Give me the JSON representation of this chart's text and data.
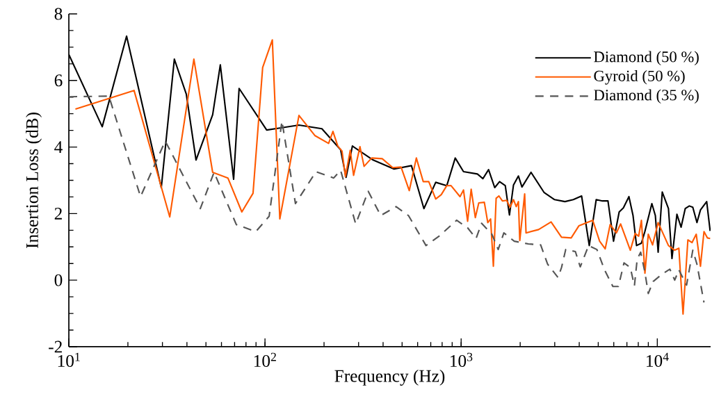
{
  "chart_data": {
    "type": "line",
    "xlabel": "Frequency (Hz)",
    "ylabel": "Insertion Loss (dB)",
    "log": "x",
    "legend": "top right",
    "marker": "none",
    "xlim": [
      10,
      18700
    ],
    "ylim": [
      -2,
      8
    ],
    "xticks": [
      {
        "value": 10,
        "label": "10$^{1}$"
      },
      {
        "value": 100,
        "label": "10$^{2}$"
      },
      {
        "value": 1000,
        "label": "10$^{3}$"
      },
      {
        "value": 10000,
        "label": "10$^{4}$"
      }
    ],
    "yticks": [
      -2,
      0,
      2,
      4,
      6,
      8
    ],
    "series": [
      {
        "name": "Diamond (50 %)",
        "color": "#000000",
        "line_style": "solid",
        "x": [
          10,
          14.8,
          19.7,
          29.6,
          34.5,
          39.7,
          44.5,
          54.1,
          59.2,
          69.2,
          73.8,
          102,
          119,
          149,
          195,
          243,
          259,
          279,
          356,
          455,
          558,
          646,
          742,
          845,
          933,
          1028,
          1210,
          1291,
          1380,
          1483,
          1570,
          1679,
          1763,
          1849,
          1959,
          2042,
          2271,
          2651,
          2995,
          3383,
          3732,
          4113,
          4500,
          4882,
          5252,
          5605,
          5984,
          6393,
          6714,
          7169,
          7524,
          7837,
          8297,
          8643,
          9383,
          9775,
          10100,
          10600,
          11400,
          11880,
          12590,
          13220,
          13880,
          14570,
          15170,
          15930,
          16600,
          17860,
          18600
        ],
        "values": [
          6.78,
          4.61,
          7.33,
          2.78,
          6.64,
          5.59,
          3.61,
          4.97,
          6.47,
          3.03,
          5.76,
          4.51,
          4.57,
          4.66,
          4.55,
          3.92,
          3.09,
          4.03,
          3.61,
          3.34,
          3.44,
          2.15,
          2.94,
          2.84,
          3.67,
          3.26,
          3.19,
          3.05,
          3.32,
          2.78,
          2.96,
          2.84,
          1.96,
          2.86,
          3.13,
          2.8,
          3.24,
          2.63,
          2.42,
          2.36,
          2.42,
          2.53,
          1.04,
          2.42,
          2.38,
          2.38,
          1.17,
          2.05,
          2.17,
          2.51,
          1.94,
          1.04,
          1.11,
          1.46,
          2.3,
          1.94,
          0.84,
          2.65,
          2.15,
          0.65,
          1.98,
          1.59,
          2.15,
          2.23,
          2.19,
          1.73,
          2.11,
          2.36,
          1.48
        ]
      },
      {
        "name": "Gyroid (50 %)",
        "color": "#ff5a00",
        "line_style": "solid",
        "x": [
          10.8,
          21.5,
          32.7,
          43.4,
          54.1,
          64.7,
          76.2,
          86.9,
          97.3,
          109,
          119,
          149,
          180,
          211,
          222,
          235,
          247,
          257,
          272,
          283,
          305,
          320,
          350,
          396,
          448,
          494,
          544,
          591,
          641,
          684,
          742,
          792,
          845,
          888,
          987,
          1028,
          1079,
          1125,
          1181,
          1230,
          1313,
          1367,
          1413,
          1460,
          1508,
          1558,
          1623,
          1706,
          1775,
          1849,
          1910,
          1959,
          1991,
          2108,
          2142,
          2482,
          2874,
          3249,
          3640,
          3981,
          4688,
          5082,
          5426,
          5748,
          6185,
          6500,
          7285,
          7715,
          8035,
          8300,
          8650,
          8995,
          9460,
          10100,
          11400,
          12270,
          12880,
          13530,
          14320,
          15040,
          15800,
          16600,
          17300,
          18000,
          18600
        ],
        "values": [
          5.14,
          5.7,
          1.9,
          6.64,
          3.24,
          3.07,
          2.05,
          2.61,
          6.39,
          7.22,
          1.84,
          4.95,
          4.34,
          4.11,
          4.47,
          4.03,
          3.88,
          3.11,
          3.9,
          3.15,
          4.01,
          3.42,
          3.67,
          3.65,
          3.38,
          3.4,
          2.69,
          3.67,
          2.96,
          2.96,
          2.44,
          2.57,
          2.84,
          2.84,
          2.51,
          2.71,
          1.77,
          2.73,
          1.88,
          2.32,
          2.34,
          1.73,
          1.84,
          0.42,
          2.46,
          2.53,
          2.38,
          2.4,
          2.19,
          2.42,
          2.21,
          2.36,
          1.19,
          2.59,
          1.42,
          1.52,
          1.75,
          1.29,
          1.27,
          1.63,
          1.8,
          1.17,
          0.94,
          1.67,
          1.42,
          1.69,
          0.9,
          1.4,
          1.32,
          1.8,
          0.21,
          1.38,
          1.06,
          1.73,
          1.04,
          0.9,
          0.96,
          -1.02,
          1.21,
          1.13,
          1.38,
          0.42,
          1.46,
          1.27,
          1.25
        ]
      },
      {
        "name": "Diamond (35 %)",
        "color": "#555555",
        "line_style": "dashed",
        "x": [
          10,
          16.0,
          23.2,
          31.0,
          46.8,
          55.0,
          71.4,
          89.8,
          105,
          122,
          143,
          182,
          224,
          243,
          290,
          336,
          389,
          466,
          539,
          662,
          779,
          948,
          1080,
          1191,
          1271,
          1435,
          1545,
          1651,
          1866,
          2198,
          2543,
          2760,
          3119,
          3249,
          3413,
          3823,
          4047,
          4467,
          4923,
          5384,
          5937,
          6336,
          6766,
          7285,
          7645,
          7898,
          8228,
          8650,
          8995,
          9526,
          10510,
          11590,
          12270,
          12880,
          14100,
          15170,
          15930,
          17300
        ],
        "values": [
          5.51,
          5.53,
          2.51,
          4.18,
          2.15,
          3.24,
          1.67,
          1.46,
          1.92,
          4.78,
          2.3,
          3.26,
          3.07,
          3.3,
          1.69,
          2.67,
          1.94,
          2.21,
          1.94,
          1.04,
          1.34,
          1.8,
          1.57,
          1.25,
          1.71,
          1.38,
          0.92,
          1.42,
          1.17,
          1.09,
          1.06,
          0.48,
          0.08,
          0.38,
          0.92,
          0.86,
          0.4,
          1.04,
          0.92,
          0.31,
          -0.19,
          -0.19,
          0.52,
          0.38,
          -0.17,
          0.63,
          0.84,
          0.23,
          -0.4,
          -0.04,
          0.17,
          0.33,
          0.0,
          0.31,
          -0.15,
          0.9,
          0.48,
          -0.67
        ]
      }
    ]
  }
}
